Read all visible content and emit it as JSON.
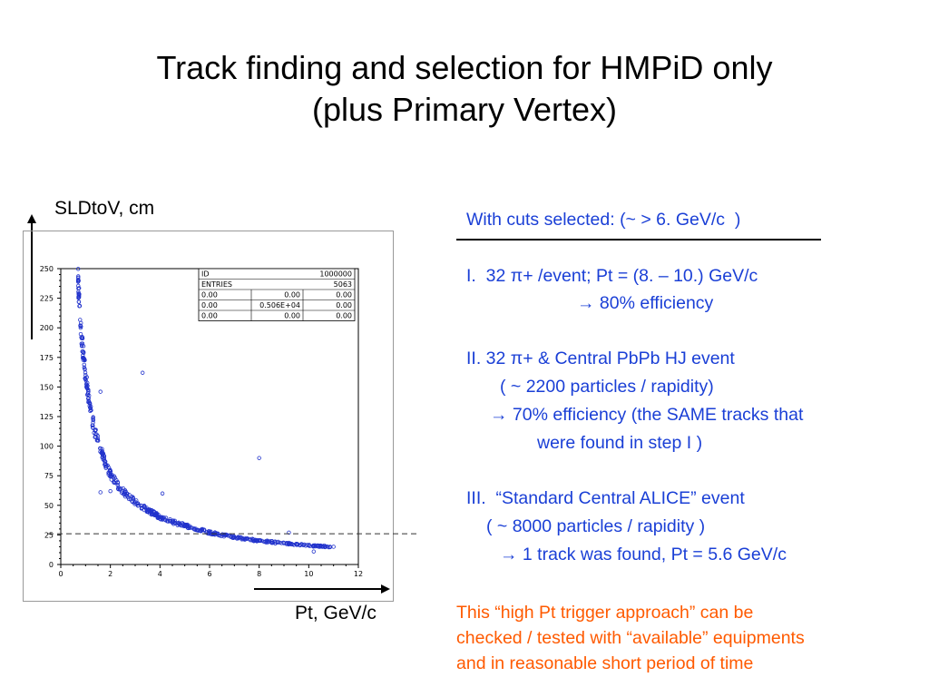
{
  "slide": {
    "title_line1": "Track finding and selection for HMPiD only",
    "title_line2": "(plus Primary Vertex)",
    "y_axis_caption": "SLDtoV, cm",
    "x_axis_caption": "Pt, GeV/c"
  },
  "stats_box": {
    "rows": [
      [
        "ID",
        "",
        "1000000"
      ],
      [
        "ENTRIES",
        "",
        "5063"
      ],
      [
        "0.00",
        "0.00",
        "0.00"
      ],
      [
        "0.00",
        "0.506E+04",
        "0.00"
      ],
      [
        "0.00",
        "0.00",
        "0.00"
      ]
    ]
  },
  "notes": {
    "cuts": "With cuts selected: (~ > 6. GeV/c  )",
    "i_line1": "I.  32 π+ /event; Pt = (8. – 10.) GeV/c",
    "i_line2": "80% efficiency",
    "ii_line1": "II. 32 π+ & Central PbPb HJ event",
    "ii_line2": "( ~ 2200 particles / rapidity)",
    "ii_line3": "70% efficiency (the SAME tracks that",
    "ii_line4": "were found in step I )",
    "iii_line1": "III.  “Standard Central ALICE” event",
    "iii_line2": "( ~ 8000 particles / rapidity )",
    "iii_line3": "1 track was found, Pt = 5.6 GeV/c",
    "footer_line1": "This “high Pt trigger approach” can be",
    "footer_line2": "checked / tested with “available” equipments",
    "footer_line3": "and in reasonable short period of time"
  },
  "colors": {
    "note_text": "#1a3fd6",
    "footer_text": "#ff5a00",
    "markers": "#2233cc"
  },
  "chart_data": {
    "type": "scatter",
    "x_ticks": [
      0,
      2,
      4,
      6,
      8,
      10,
      12
    ],
    "y_ticks": [
      0,
      25,
      50,
      75,
      100,
      125,
      150,
      175,
      200,
      225,
      250
    ],
    "xlim": [
      0,
      12
    ],
    "ylim": [
      0,
      250
    ],
    "cut_line_y": 26,
    "trend": {
      "x": [
        0.7,
        0.8,
        0.9,
        1.0,
        1.1,
        1.2,
        1.3,
        1.4,
        1.6,
        1.8,
        2.0,
        2.3,
        2.6,
        3.0,
        3.5,
        4.0,
        4.5,
        5.0,
        6.0,
        7.0,
        8.0,
        9.0,
        10.0,
        11.0
      ],
      "y": [
        240,
        200,
        180,
        160,
        145,
        132,
        120,
        110,
        98,
        85,
        76,
        67,
        60,
        53,
        46,
        40,
        36,
        33,
        27,
        23,
        20,
        18,
        16,
        15
      ]
    },
    "outliers": {
      "x": [
        3.3,
        1.6,
        8.0,
        4.1,
        1.6,
        2.0,
        9.2,
        10.2
      ],
      "y": [
        162,
        146,
        90,
        60,
        61,
        62,
        27,
        11
      ]
    }
  }
}
